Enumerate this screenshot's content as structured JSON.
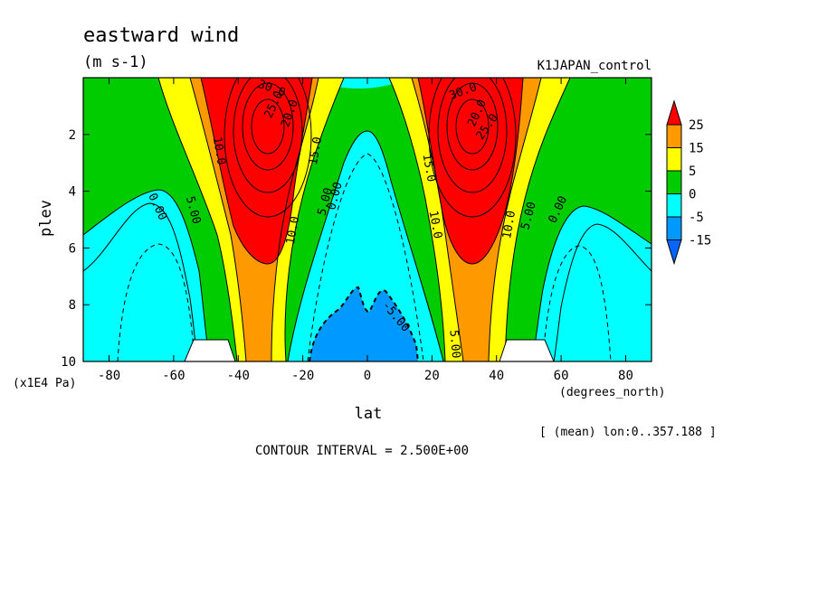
{
  "chart_data": {
    "type": "contour",
    "title": "eastward wind",
    "units": "(m s-1)",
    "experiment": "K1JAPAN_control",
    "xlabel": "lat",
    "xunits": "(degrees_north)",
    "ylabel": "plev",
    "yunits": "(x1E4 Pa)",
    "xlim": [
      -88,
      88
    ],
    "ylim": [
      10,
      0
    ],
    "xticks": [
      -80,
      -60,
      -40,
      -20,
      0,
      20,
      40,
      60,
      80
    ],
    "yticks": [
      2,
      4,
      6,
      8,
      10
    ],
    "contour_interval_label": "CONTOUR INTERVAL = 2.500E+00",
    "mean_note": "[ (mean) lon:0..357.188 ]",
    "colorbar": {
      "labels": [
        "25",
        "15",
        "5",
        "0",
        "-5",
        "-15"
      ],
      "colors": [
        "#ff0000",
        "#ff9900",
        "#ffff00",
        "#00cc00",
        "#00ffff",
        "#0099ff",
        "#0066ff"
      ]
    },
    "contour_labels": [
      "0.00",
      "5.00",
      "10.0",
      "15.0",
      "20.0",
      "25.0",
      "30.0",
      "-5.00"
    ],
    "jets": [
      {
        "hemisphere": "south",
        "lat": -32,
        "plev": 1.8,
        "max_value": 30
      },
      {
        "hemisphere": "north",
        "lat": 32,
        "plev": 1.8,
        "max_value": 30
      }
    ]
  }
}
